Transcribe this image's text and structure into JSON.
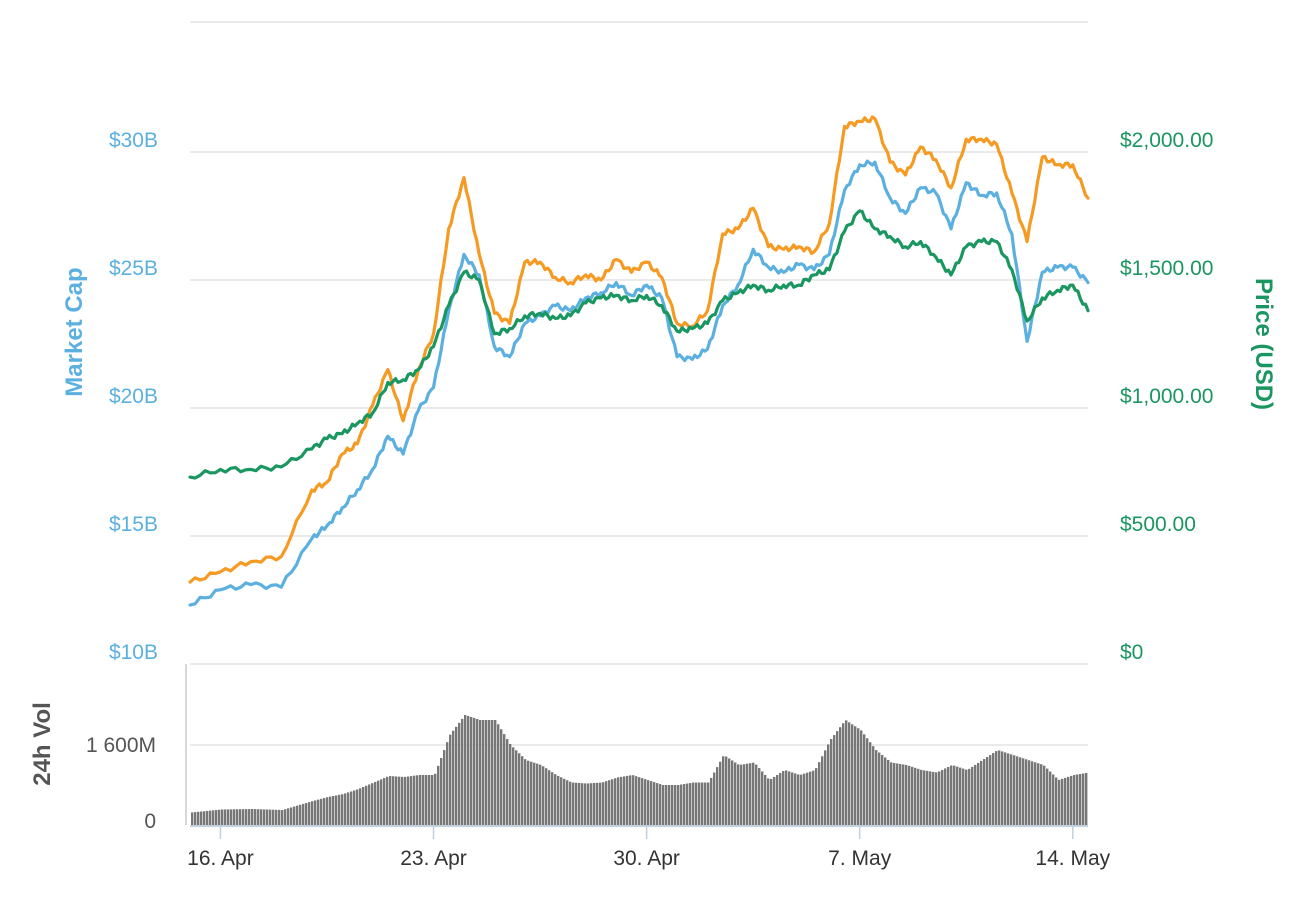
{
  "chart_data": {
    "type": "line",
    "x_type": "datetime",
    "x_range": [
      "2018-04-15T00:00",
      "2018-05-14T12:00"
    ],
    "x_ticks": [
      {
        "date": "2018-04-16",
        "label": "16. Apr"
      },
      {
        "date": "2018-04-23",
        "label": "23. Apr"
      },
      {
        "date": "2018-04-30",
        "label": "30. Apr"
      },
      {
        "date": "2018-05-07",
        "label": "7. May"
      },
      {
        "date": "2018-05-14",
        "label": "14. May"
      }
    ],
    "y_left": {
      "title": "Market Cap",
      "range": [
        10,
        30
      ],
      "ticks": [
        {
          "value": 10,
          "label": "$10B"
        },
        {
          "value": 15,
          "label": "$15B"
        },
        {
          "value": 20,
          "label": "$20B"
        },
        {
          "value": 25,
          "label": "$25B"
        },
        {
          "value": 30,
          "label": "$30B"
        }
      ]
    },
    "y_right": {
      "title": "Price (USD)",
      "range": [
        0,
        2000
      ],
      "ticks": [
        {
          "value": 0,
          "label": "$0"
        },
        {
          "value": 500,
          "label": "$500.00"
        },
        {
          "value": 1000,
          "label": "$1,000.00"
        },
        {
          "value": 1500,
          "label": "$1,500.00"
        },
        {
          "value": 2000,
          "label": "$2,000.00"
        }
      ]
    },
    "y_volume": {
      "title": "24h Vol",
      "ticks": [
        {
          "value": 0,
          "label": "0"
        },
        {
          "value": 1600,
          "label": "1 600M"
        }
      ]
    },
    "grid": true,
    "series": [
      {
        "axis": "left",
        "color": "#5bb0e0",
        "x": [
          "2018-04-15T00:00",
          "2018-04-16T00:00",
          "2018-04-17T00:00",
          "2018-04-18T00:00",
          "2018-04-19T00:00",
          "2018-04-19T12:00",
          "2018-04-20T00:00",
          "2018-04-20T12:00",
          "2018-04-21T00:00",
          "2018-04-21T12:00",
          "2018-04-22T00:00",
          "2018-04-22T12:00",
          "2018-04-23T00:00",
          "2018-04-23T12:00",
          "2018-04-24T00:00",
          "2018-04-24T12:00",
          "2018-04-25T00:00",
          "2018-04-25T12:00",
          "2018-04-26T00:00",
          "2018-04-26T12:00",
          "2018-04-27T00:00",
          "2018-04-27T12:00",
          "2018-04-28T00:00",
          "2018-04-28T12:00",
          "2018-04-29T00:00",
          "2018-04-29T12:00",
          "2018-04-30T00:00",
          "2018-04-30T12:00",
          "2018-05-01T00:00",
          "2018-05-01T12:00",
          "2018-05-02T00:00",
          "2018-05-02T12:00",
          "2018-05-03T00:00",
          "2018-05-03T12:00",
          "2018-05-04T00:00",
          "2018-05-04T12:00",
          "2018-05-05T00:00",
          "2018-05-05T12:00",
          "2018-05-06T00:00",
          "2018-05-06T12:00",
          "2018-05-07T00:00",
          "2018-05-07T12:00",
          "2018-05-08T00:00",
          "2018-05-08T12:00",
          "2018-05-09T00:00",
          "2018-05-09T12:00",
          "2018-05-10T00:00",
          "2018-05-10T12:00",
          "2018-05-11T00:00",
          "2018-05-11T12:00",
          "2018-05-12T00:00",
          "2018-05-12T12:00",
          "2018-05-13T00:00",
          "2018-05-13T12:00",
          "2018-05-14T00:00",
          "2018-05-14T12:00"
        ],
        "values": [
          12.3,
          12.9,
          13.1,
          13.0,
          14.9,
          15.4,
          16.1,
          16.8,
          17.6,
          18.9,
          18.2,
          19.9,
          20.8,
          23.8,
          26.0,
          25.2,
          22.4,
          22.0,
          23.3,
          23.6,
          24.0,
          23.8,
          24.3,
          24.5,
          24.9,
          24.4,
          24.8,
          24.3,
          22.0,
          21.9,
          22.3,
          24.0,
          24.8,
          26.2,
          25.5,
          25.3,
          25.6,
          25.4,
          26.0,
          28.5,
          29.5,
          29.6,
          28.2,
          27.6,
          28.6,
          28.4,
          27.0,
          28.8,
          28.3,
          28.4,
          26.8,
          22.6,
          25.3,
          25.5,
          25.5,
          24.9
        ]
      },
      {
        "axis": "left",
        "color": "#f59a23",
        "x": [
          "2018-04-15T00:00",
          "2018-04-16T00:00",
          "2018-04-17T00:00",
          "2018-04-18T00:00",
          "2018-04-19T00:00",
          "2018-04-19T12:00",
          "2018-04-20T00:00",
          "2018-04-20T12:00",
          "2018-04-21T00:00",
          "2018-04-21T12:00",
          "2018-04-22T00:00",
          "2018-04-22T12:00",
          "2018-04-23T00:00",
          "2018-04-23T12:00",
          "2018-04-24T00:00",
          "2018-04-24T12:00",
          "2018-04-25T00:00",
          "2018-04-25T12:00",
          "2018-04-26T00:00",
          "2018-04-26T12:00",
          "2018-04-27T00:00",
          "2018-04-27T12:00",
          "2018-04-28T00:00",
          "2018-04-28T12:00",
          "2018-04-29T00:00",
          "2018-04-29T12:00",
          "2018-04-30T00:00",
          "2018-04-30T12:00",
          "2018-05-01T00:00",
          "2018-05-01T12:00",
          "2018-05-02T00:00",
          "2018-05-02T12:00",
          "2018-05-03T00:00",
          "2018-05-03T12:00",
          "2018-05-04T00:00",
          "2018-05-04T12:00",
          "2018-05-05T00:00",
          "2018-05-05T12:00",
          "2018-05-06T00:00",
          "2018-05-06T12:00",
          "2018-05-07T00:00",
          "2018-05-07T12:00",
          "2018-05-08T00:00",
          "2018-05-08T12:00",
          "2018-05-09T00:00",
          "2018-05-09T12:00",
          "2018-05-10T00:00",
          "2018-05-10T12:00",
          "2018-05-11T00:00",
          "2018-05-11T12:00",
          "2018-05-12T00:00",
          "2018-05-12T12:00",
          "2018-05-13T00:00",
          "2018-05-13T12:00",
          "2018-05-14T00:00",
          "2018-05-14T12:00"
        ],
        "values": [
          13.2,
          13.6,
          14.0,
          14.2,
          16.8,
          17.1,
          18.2,
          18.6,
          20.1,
          21.5,
          19.5,
          21.5,
          22.9,
          27.0,
          29.0,
          26.0,
          23.7,
          23.3,
          25.7,
          25.7,
          25.1,
          24.9,
          25.2,
          25.0,
          25.8,
          25.3,
          25.7,
          25.1,
          23.3,
          23.2,
          23.8,
          26.8,
          27.0,
          27.8,
          26.3,
          26.2,
          26.3,
          26.1,
          27.2,
          31.0,
          31.2,
          31.3,
          29.6,
          29.1,
          30.2,
          29.7,
          28.6,
          30.5,
          30.5,
          30.3,
          28.4,
          26.5,
          29.8,
          29.5,
          29.5,
          28.2
        ]
      },
      {
        "axis": "right",
        "color": "#1a9660",
        "x": [
          "2018-04-15T00:00",
          "2018-04-16T00:00",
          "2018-04-17T00:00",
          "2018-04-18T00:00",
          "2018-04-19T00:00",
          "2018-04-19T12:00",
          "2018-04-20T00:00",
          "2018-04-20T12:00",
          "2018-04-21T00:00",
          "2018-04-21T12:00",
          "2018-04-22T00:00",
          "2018-04-22T12:00",
          "2018-04-23T00:00",
          "2018-04-23T12:00",
          "2018-04-24T00:00",
          "2018-04-24T12:00",
          "2018-04-25T00:00",
          "2018-04-25T12:00",
          "2018-04-26T00:00",
          "2018-04-26T12:00",
          "2018-04-27T00:00",
          "2018-04-27T12:00",
          "2018-04-28T00:00",
          "2018-04-28T12:00",
          "2018-04-29T00:00",
          "2018-04-29T12:00",
          "2018-04-30T00:00",
          "2018-04-30T12:00",
          "2018-05-01T00:00",
          "2018-05-01T12:00",
          "2018-05-02T00:00",
          "2018-05-02T12:00",
          "2018-05-03T00:00",
          "2018-05-03T12:00",
          "2018-05-04T00:00",
          "2018-05-04T12:00",
          "2018-05-05T00:00",
          "2018-05-05T12:00",
          "2018-05-06T00:00",
          "2018-05-06T12:00",
          "2018-05-07T00:00",
          "2018-05-07T12:00",
          "2018-05-08T00:00",
          "2018-05-08T12:00",
          "2018-05-09T00:00",
          "2018-05-09T12:00",
          "2018-05-10T00:00",
          "2018-05-10T12:00",
          "2018-05-11T00:00",
          "2018-05-11T12:00",
          "2018-05-12T00:00",
          "2018-05-12T12:00",
          "2018-05-13T00:00",
          "2018-05-13T12:00",
          "2018-05-14T00:00",
          "2018-05-14T12:00"
        ],
        "values": [
          730,
          760,
          760,
          770,
          840,
          880,
          900,
          940,
          980,
          1100,
          1110,
          1150,
          1240,
          1400,
          1530,
          1500,
          1290,
          1310,
          1360,
          1370,
          1350,
          1360,
          1410,
          1430,
          1440,
          1420,
          1440,
          1400,
          1300,
          1310,
          1330,
          1420,
          1450,
          1480,
          1460,
          1480,
          1480,
          1520,
          1540,
          1690,
          1770,
          1700,
          1670,
          1630,
          1650,
          1590,
          1520,
          1630,
          1650,
          1650,
          1540,
          1340,
          1430,
          1460,
          1480,
          1380
        ]
      }
    ],
    "volume": {
      "color": "#777777",
      "x": [
        "2018-04-15T00:00",
        "2018-04-16T00:00",
        "2018-04-17T00:00",
        "2018-04-18T00:00",
        "2018-04-19T00:00",
        "2018-04-19T12:00",
        "2018-04-20T00:00",
        "2018-04-20T12:00",
        "2018-04-21T00:00",
        "2018-04-21T12:00",
        "2018-04-22T00:00",
        "2018-04-22T12:00",
        "2018-04-23T00:00",
        "2018-04-23T12:00",
        "2018-04-24T00:00",
        "2018-04-24T12:00",
        "2018-04-25T00:00",
        "2018-04-25T12:00",
        "2018-04-26T00:00",
        "2018-04-26T12:00",
        "2018-04-27T00:00",
        "2018-04-27T12:00",
        "2018-04-28T00:00",
        "2018-04-28T12:00",
        "2018-04-29T00:00",
        "2018-04-29T12:00",
        "2018-04-30T00:00",
        "2018-04-30T12:00",
        "2018-05-01T00:00",
        "2018-05-01T12:00",
        "2018-05-02T00:00",
        "2018-05-02T12:00",
        "2018-05-03T00:00",
        "2018-05-03T12:00",
        "2018-05-04T00:00",
        "2018-05-04T12:00",
        "2018-05-05T00:00",
        "2018-05-05T12:00",
        "2018-05-06T00:00",
        "2018-05-06T12:00",
        "2018-05-07T00:00",
        "2018-05-07T12:00",
        "2018-05-08T00:00",
        "2018-05-08T12:00",
        "2018-05-09T00:00",
        "2018-05-09T12:00",
        "2018-05-10T00:00",
        "2018-05-10T12:00",
        "2018-05-11T00:00",
        "2018-05-11T12:00",
        "2018-05-12T00:00",
        "2018-05-12T12:00",
        "2018-05-13T00:00",
        "2018-05-13T12:00",
        "2018-05-14T00:00",
        "2018-05-14T12:00"
      ],
      "values": [
        250,
        310,
        320,
        300,
        480,
        560,
        620,
        720,
        850,
        980,
        960,
        1000,
        1000,
        1800,
        2200,
        2100,
        2100,
        1600,
        1300,
        1200,
        1000,
        850,
        830,
        850,
        950,
        1000,
        900,
        800,
        800,
        850,
        850,
        1400,
        1200,
        1250,
        900,
        1100,
        1000,
        1100,
        1700,
        2100,
        1900,
        1500,
        1250,
        1200,
        1100,
        1050,
        1200,
        1100,
        1300,
        1500,
        1400,
        1300,
        1200,
        900,
        1000,
        1050
      ]
    }
  }
}
